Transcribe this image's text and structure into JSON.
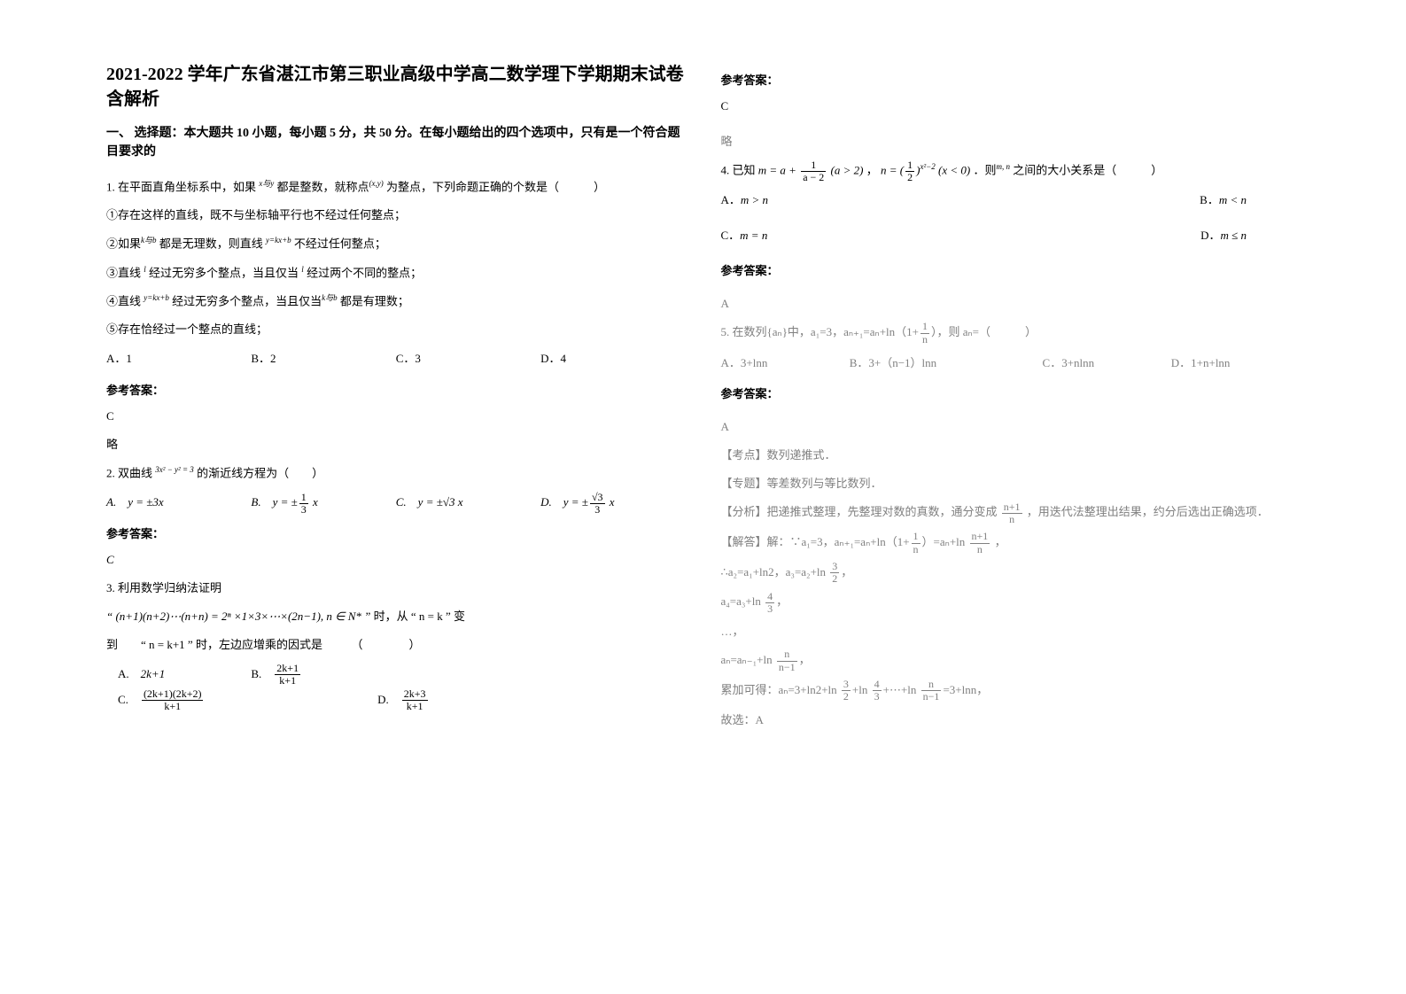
{
  "title": "2021-2022 学年广东省湛江市第三职业高级中学高二数学理下学期期末试卷含解析",
  "section1_header": "一、 选择题：本大题共 10 小题，每小题 5 分，共 50 分。在每小题给出的四个选项中，只有是一个符合题目要求的",
  "q1": {
    "stem_a": "1. 在平面直角坐标系中，如果 ",
    "stem_xy": "x与y",
    "stem_b": " 都是整数，就称点",
    "stem_point": "(x,y)",
    "stem_c": " 为整点，下列命题正确的个数是（　　　）",
    "item1": "①存在这样的直线，既不与坐标轴平行也不经过任何整点；",
    "item2_a": "②如果",
    "item2_kb": "k与b",
    "item2_b": " 都是无理数，则直线 ",
    "item2_line": "y=kx+b",
    "item2_c": " 不经过任何整点；",
    "item3_a": "③直线 ",
    "item3_l": "l",
    "item3_b": " 经过无穷多个整点，当且仅当 ",
    "item3_l2": "l",
    "item3_c": " 经过两个不同的整点；",
    "item4_a": "④直线 ",
    "item4_line": "y=kx+b",
    "item4_b": " 经过无穷多个整点，当且仅当",
    "item4_kb": "k与b",
    "item4_c": " 都是有理数；",
    "item5": "⑤存在恰经过一个整点的直线；",
    "optA": "A．1",
    "optB": "B．2",
    "optC": "C．3",
    "optD": "D．4",
    "ans_label": "参考答案：",
    "ans": "C",
    "note": "略"
  },
  "q2": {
    "stem_a": "2. 双曲线 ",
    "stem_eq": "3x² − y² = 3",
    "stem_b": " 的渐近线方程为（　　）",
    "optA_pre": "A.　",
    "optA": "y = ±3x",
    "optB_pre": "B.　",
    "optB_l": "y = ±",
    "optB_num": "1",
    "optB_den": "3",
    "optB_r": " x",
    "optC_pre": "C.　",
    "optC": "y = ±√3 x",
    "optD_pre": "D.　",
    "optD_l": "y = ±",
    "optD_num": "√3",
    "optD_den": "3",
    "optD_r": " x",
    "ans_label": "参考答案：",
    "ans": "C"
  },
  "q3": {
    "stem": "3. 利用数学归纳法证明",
    "formula_a": "“ (n+1)(n+2)⋯(n+n) = 2ⁿ ×1×3×⋯×(2n−1), n ∈ N*  ”",
    "formula_b": " 时，从 “ n = k ” 变",
    "line2_a": "到　　“ n = k+1 ” 时，左边应增乘的因式是　　　（　　　　）",
    "optA_pre": "A.　",
    "optA": "2k+1",
    "optB_pre": "B.　",
    "optB_num": "2k+1",
    "optB_den": "k+1",
    "optC_pre": "C.　",
    "optC_num": "(2k+1)(2k+2)",
    "optC_den": "k+1",
    "optD_pre": "D.　",
    "optD_num": "2k+3",
    "optD_den": "k+1",
    "ans_label": "参考答案：",
    "ans": "C",
    "note": "略"
  },
  "q4": {
    "stem_a": "4. 已知 ",
    "m_l": "m = a + ",
    "m_num": "1",
    "m_den": "a − 2",
    "m_r": " (a > 2)",
    "comma": "，",
    "n_l": "n = (",
    "n_num": "1",
    "n_den": "2",
    "n_r": ")",
    "n_exp": "x²−2",
    "n_cond": " (x < 0)",
    "stem_b": "．则",
    "mn": "m, n",
    "stem_c": " 之间的大小关系是（　　　）",
    "optA_pre": "A．",
    "optA": "m > n",
    "optB_pre": "B．",
    "optB": "m < n",
    "optC_pre": "C．",
    "optC": "m = n",
    "optD_pre": "D．",
    "optD": "m ≤ n",
    "ans_label": "参考答案：",
    "ans": "A"
  },
  "q5": {
    "stem_a": "5. 在数列{aₙ}中，a₁=3，aₙ₊₁=aₙ+ln（1+",
    "frac_num": "1",
    "frac_den": "n",
    "stem_b": "），则 aₙ=（　　　）",
    "optA": "A．3+lnn",
    "optB": "B．3+（n−1）lnn",
    "optC": "C．3+nlnn",
    "optD": "D．1+n+lnn",
    "ans_label": "参考答案：",
    "ans": "A",
    "kd_label": "【考点】数列递推式．",
    "zt_label": "【专题】等差数列与等比数列．",
    "fx_a": "【分析】把递推式整理，先整理对数的真数，通分变成 ",
    "fx_num": "n+1",
    "fx_den": "n",
    "fx_b": " ，用迭代法整理出结果，约分后选出正确选项．",
    "jd_a": "【解答】解：∵a₁=3，aₙ₊₁=aₙ+ln（1+",
    "jd_num1": "1",
    "jd_den1": "n",
    "jd_b": "）=aₙ+ln ",
    "jd_num2": "n+1",
    "jd_den2": "n",
    "jd_c": " ，",
    "line1_a": "∴a₂=a₁+ln2，a₃=a₂+ln ",
    "line1_num": "3",
    "line1_den": "2",
    "line1_b": "，",
    "line2_a": "a₄=a₃+ln ",
    "line2_num": "4",
    "line2_den": "3",
    "line2_b": "，",
    "dots": "…，",
    "linen_a": "aₙ=aₙ₋₁+ln ",
    "linen_num": "n",
    "linen_den": "n−1",
    "linen_b": "，",
    "sum_a": "累加可得：aₙ=3+ln2+ln ",
    "sum_n1": "3",
    "sum_d1": "2",
    "sum_b": "+ln ",
    "sum_n2": "4",
    "sum_d2": "3",
    "sum_c": "+⋯+ln ",
    "sum_n3": "n",
    "sum_d3": "n−1",
    "sum_d": "=3+lnn，",
    "final": "故选：A"
  }
}
